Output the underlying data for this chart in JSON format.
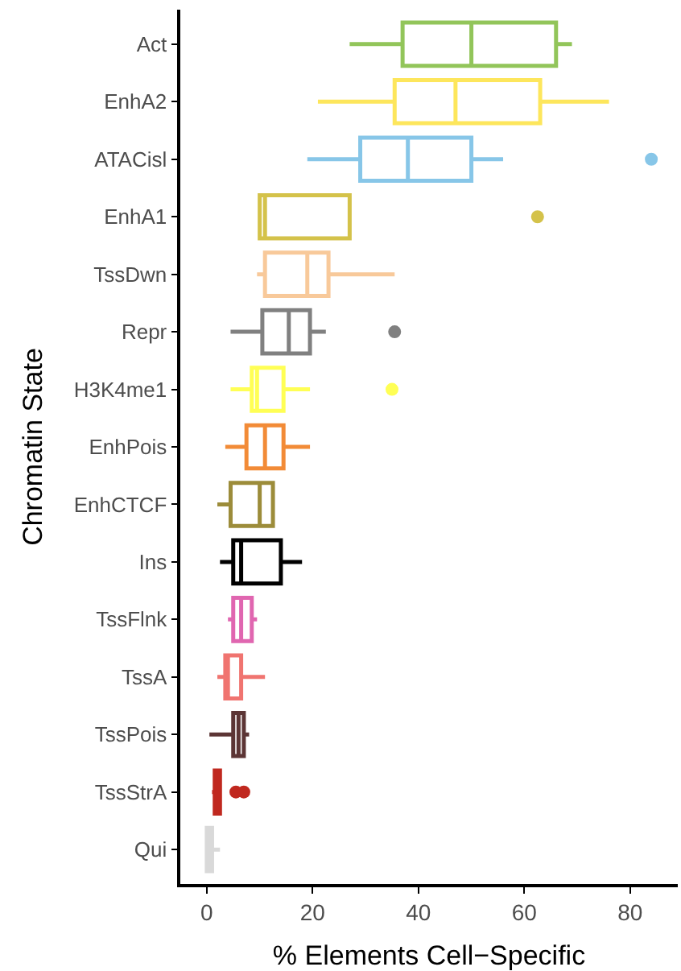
{
  "chart_data": {
    "type": "box",
    "orientation": "horizontal",
    "xlabel": "% Elements Cell−Specific",
    "ylabel": "Chromatin State",
    "categories": [
      "Act",
      "EnhA2",
      "ATACisl",
      "EnhA1",
      "TssDwn",
      "Repr",
      "H3K4me1",
      "EnhPois",
      "EnhCTCF",
      "Ins",
      "TssFlnk",
      "TssA",
      "TssPois",
      "TssStrA",
      "Qui"
    ],
    "colors": [
      "#92c55a",
      "#fde65c",
      "#87c6e8",
      "#d4c24a",
      "#f8c99a",
      "#808080",
      "#ffff55",
      "#f28b37",
      "#9c8c3a",
      "#000000",
      "#e066b0",
      "#f07470",
      "#5c3535",
      "#c0281f",
      "#d9d9d9"
    ],
    "boxes": [
      {
        "low": 27,
        "q1": 37,
        "median": 50,
        "q3": 66,
        "high": 69
      },
      {
        "low": 21,
        "q1": 35.5,
        "median": 47,
        "q3": 63,
        "high": 76
      },
      {
        "low": 19,
        "q1": 29,
        "median": 38,
        "q3": 50,
        "high": 56,
        "outliers": [
          84
        ]
      },
      {
        "low": 10,
        "q1": 10,
        "median": 11,
        "q3": 27,
        "high": 27,
        "outliers": [
          62.5
        ]
      },
      {
        "low": 9.5,
        "q1": 11,
        "median": 19,
        "q3": 23,
        "high": 35.5
      },
      {
        "low": 4.5,
        "q1": 10.5,
        "median": 15.5,
        "q3": 19.5,
        "high": 22.5,
        "outliers": [
          35.5
        ]
      },
      {
        "low": 4.5,
        "q1": 8.5,
        "median": 9.5,
        "q3": 14.5,
        "high": 19.5,
        "outliers": [
          35
        ]
      },
      {
        "low": 3.5,
        "q1": 7.5,
        "median": 11,
        "q3": 14.5,
        "high": 19.5
      },
      {
        "low": 2,
        "q1": 4.5,
        "median": 10,
        "q3": 12.5,
        "high": 12.5
      },
      {
        "low": 2.5,
        "q1": 5,
        "median": 6.5,
        "q3": 14,
        "high": 18
      },
      {
        "low": 4,
        "q1": 5,
        "median": 6.5,
        "q3": 8.5,
        "high": 9.5
      },
      {
        "low": 2,
        "q1": 3.5,
        "median": 4,
        "q3": 6.5,
        "high": 11
      },
      {
        "low": 0.5,
        "q1": 5,
        "median": 6,
        "q3": 7,
        "high": 8
      },
      {
        "low": 1,
        "q1": 1.5,
        "median": 1.5,
        "q3": 2.5,
        "high": 2.5,
        "outliers": [
          5.5,
          7
        ]
      },
      {
        "low": 0,
        "q1": 0,
        "median": 0.5,
        "q3": 1,
        "high": 2.5
      }
    ],
    "xlim": [
      -5,
      89
    ],
    "xticks": [
      0,
      20,
      40,
      60,
      80
    ]
  }
}
